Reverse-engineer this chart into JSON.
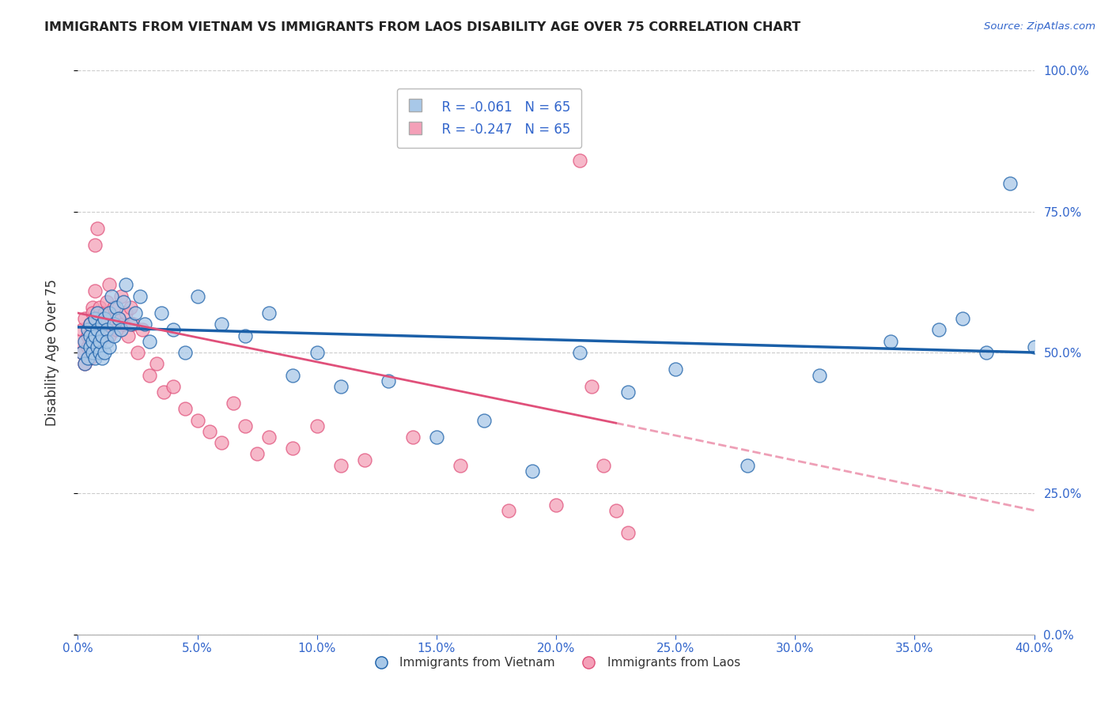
{
  "title": "IMMIGRANTS FROM VIETNAM VS IMMIGRANTS FROM LAOS DISABILITY AGE OVER 75 CORRELATION CHART",
  "source": "Source: ZipAtlas.com",
  "ylabel": "Disability Age Over 75",
  "legend_label_blue": "Immigrants from Vietnam",
  "legend_label_pink": "Immigrants from Laos",
  "legend_r_blue": "R = -0.061",
  "legend_n_blue": "N = 65",
  "legend_r_pink": "R = -0.247",
  "legend_n_pink": "N = 65",
  "xmin": 0.0,
  "xmax": 0.4,
  "ymin": 0.0,
  "ymax": 1.0,
  "yticks": [
    0.0,
    0.25,
    0.5,
    0.75,
    1.0
  ],
  "xticks": [
    0.0,
    0.05,
    0.1,
    0.15,
    0.2,
    0.25,
    0.3,
    0.35,
    0.4
  ],
  "color_blue": "#A8C8E8",
  "color_pink": "#F4A0B8",
  "color_trend_blue": "#1A5FA8",
  "color_trend_pink": "#E0507A",
  "color_axis_labels": "#3366CC",
  "color_grid": "#CCCCCC",
  "background_color": "#FFFFFF",
  "scatter_blue_x": [
    0.002,
    0.003,
    0.003,
    0.004,
    0.004,
    0.005,
    0.005,
    0.005,
    0.006,
    0.006,
    0.007,
    0.007,
    0.007,
    0.008,
    0.008,
    0.008,
    0.009,
    0.009,
    0.01,
    0.01,
    0.01,
    0.011,
    0.011,
    0.012,
    0.012,
    0.013,
    0.013,
    0.014,
    0.015,
    0.015,
    0.016,
    0.017,
    0.018,
    0.019,
    0.02,
    0.022,
    0.024,
    0.026,
    0.028,
    0.03,
    0.035,
    0.04,
    0.045,
    0.05,
    0.06,
    0.07,
    0.08,
    0.09,
    0.1,
    0.11,
    0.13,
    0.15,
    0.17,
    0.19,
    0.21,
    0.23,
    0.25,
    0.28,
    0.31,
    0.34,
    0.36,
    0.37,
    0.38,
    0.39,
    0.4
  ],
  "scatter_blue_y": [
    0.5,
    0.52,
    0.48,
    0.54,
    0.49,
    0.53,
    0.51,
    0.55,
    0.5,
    0.52,
    0.56,
    0.49,
    0.53,
    0.57,
    0.51,
    0.54,
    0.5,
    0.52,
    0.55,
    0.49,
    0.53,
    0.56,
    0.5,
    0.54,
    0.52,
    0.57,
    0.51,
    0.6,
    0.55,
    0.53,
    0.58,
    0.56,
    0.54,
    0.59,
    0.62,
    0.55,
    0.57,
    0.6,
    0.55,
    0.52,
    0.57,
    0.54,
    0.5,
    0.6,
    0.55,
    0.53,
    0.57,
    0.46,
    0.5,
    0.44,
    0.45,
    0.35,
    0.38,
    0.29,
    0.5,
    0.43,
    0.47,
    0.3,
    0.46,
    0.52,
    0.54,
    0.56,
    0.5,
    0.8,
    0.51
  ],
  "scatter_pink_x": [
    0.001,
    0.002,
    0.002,
    0.003,
    0.003,
    0.004,
    0.004,
    0.005,
    0.005,
    0.006,
    0.006,
    0.006,
    0.007,
    0.007,
    0.007,
    0.008,
    0.008,
    0.008,
    0.009,
    0.009,
    0.01,
    0.01,
    0.011,
    0.011,
    0.012,
    0.012,
    0.013,
    0.013,
    0.014,
    0.015,
    0.016,
    0.017,
    0.018,
    0.019,
    0.02,
    0.021,
    0.022,
    0.023,
    0.025,
    0.027,
    0.03,
    0.033,
    0.036,
    0.04,
    0.045,
    0.05,
    0.055,
    0.06,
    0.065,
    0.07,
    0.075,
    0.08,
    0.09,
    0.1,
    0.11,
    0.12,
    0.14,
    0.16,
    0.18,
    0.2,
    0.21,
    0.215,
    0.22,
    0.225,
    0.23
  ],
  "scatter_pink_y": [
    0.52,
    0.54,
    0.5,
    0.56,
    0.48,
    0.53,
    0.51,
    0.55,
    0.49,
    0.58,
    0.53,
    0.57,
    0.61,
    0.55,
    0.69,
    0.72,
    0.54,
    0.56,
    0.52,
    0.58,
    0.54,
    0.56,
    0.53,
    0.57,
    0.59,
    0.55,
    0.53,
    0.62,
    0.56,
    0.58,
    0.54,
    0.56,
    0.6,
    0.55,
    0.57,
    0.53,
    0.58,
    0.55,
    0.5,
    0.54,
    0.46,
    0.48,
    0.43,
    0.44,
    0.4,
    0.38,
    0.36,
    0.34,
    0.41,
    0.37,
    0.32,
    0.35,
    0.33,
    0.37,
    0.3,
    0.31,
    0.35,
    0.3,
    0.22,
    0.23,
    0.84,
    0.44,
    0.3,
    0.22,
    0.18
  ],
  "trend_blue_x0": 0.0,
  "trend_blue_x1": 0.4,
  "trend_blue_y0": 0.545,
  "trend_blue_y1": 0.5,
  "trend_pink_x0": 0.0,
  "trend_pink_x1": 0.225,
  "trend_pink_y0": 0.57,
  "trend_pink_y1": 0.375,
  "trend_pink_dash_x0": 0.225,
  "trend_pink_dash_x1": 0.4,
  "trend_pink_dash_y0": 0.375,
  "trend_pink_dash_y1": 0.22
}
